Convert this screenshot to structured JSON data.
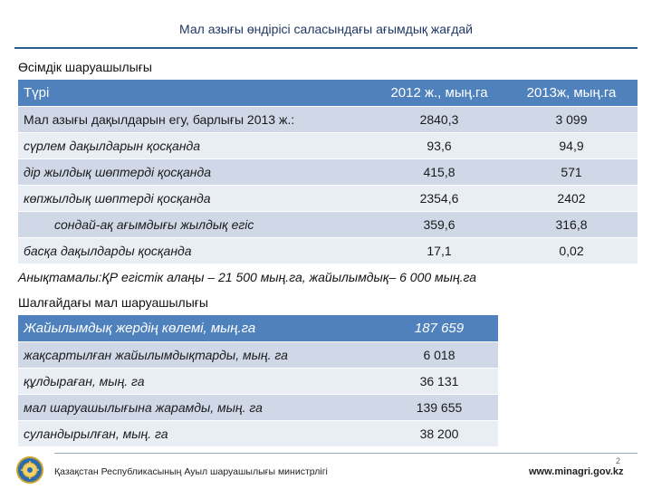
{
  "title": "Мал азығы өндірісі саласындағы ағымдық жағдай",
  "section1": {
    "heading": "Өсімдік шаруашылығы",
    "columns": [
      "Түрі",
      "2012 ж., мың.га",
      "2013ж, мың.га"
    ],
    "rows": [
      {
        "label": "Мал азығы дақылдарын егу, барлығы 2013 ж.:",
        "v2012": "2840,3",
        "v2013": "3 099"
      },
      {
        "label": "сүрлем дақылдарын қосқанда",
        "v2012": "93,6",
        "v2013": "94,9"
      },
      {
        "label": "дір жылдық шөптерді қосқанда",
        "v2012": "415,8",
        "v2013": "571"
      },
      {
        "label": "көпжылдық шөптерді қосқанда",
        "v2012": "2354,6",
        "v2013": "2402"
      },
      {
        "label": "сондай-ақ ағымдығы жылдық егіс",
        "v2012": "359,6",
        "v2013": "316,8"
      },
      {
        "label": "басқа дақылдарды қосқанда",
        "v2012": "17,1",
        "v2013": "0,02"
      }
    ]
  },
  "note": "Анықтамалы:ҚР егістік алаңы – 21 500 мың.га, жайылымдық– 6 000 мың.га",
  "section2": {
    "heading": "Шалғайдағы мал шаруашылығы",
    "header": {
      "label": "Жайылымдық жердің көлемі, мың.га",
      "value": "187 659"
    },
    "rows": [
      {
        "label": "жақсартылған жайылымдықтарды, мың. га",
        "value": "6 018"
      },
      {
        "label": "құлдыраған, мың. га",
        "value": "36 131"
      },
      {
        "label": "мал шаруашылығына жарамды, мың. га",
        "value": "139 655"
      },
      {
        "label": "суландырылған, мың. га",
        "value": "38 200"
      }
    ]
  },
  "footer": {
    "ministry": "Қазақстан Республикасының Ауыл шаруашылығы министрлігі",
    "site": "www.minagri.gov.kz",
    "page": "2"
  }
}
